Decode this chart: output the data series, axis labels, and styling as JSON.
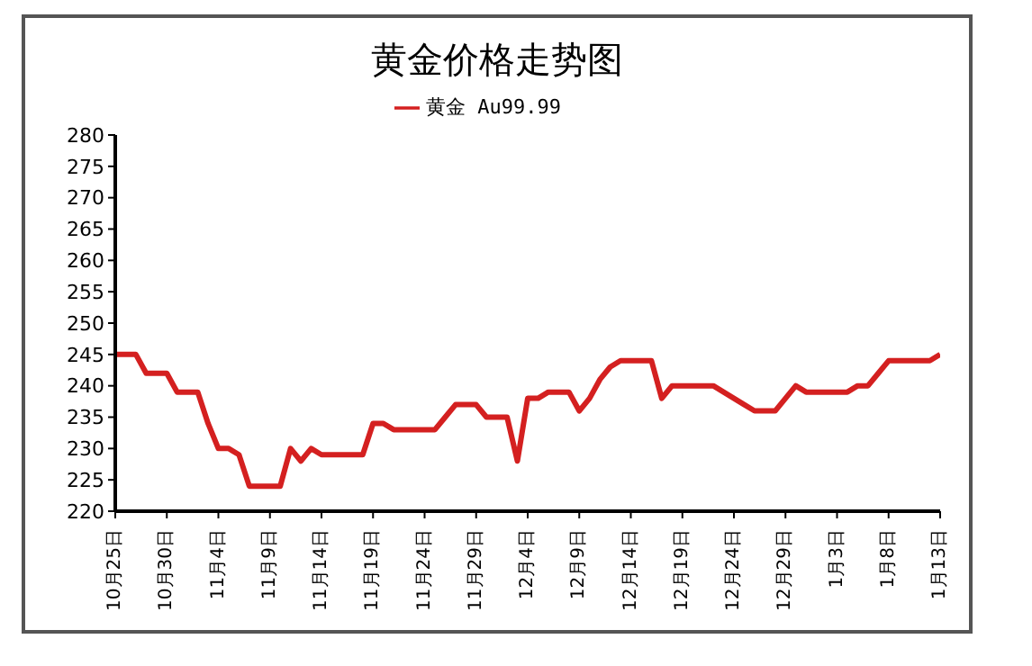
{
  "chart_data": {
    "type": "line",
    "title": "黄金价格走势图",
    "categories": [
      "10月25日",
      null,
      null,
      null,
      null,
      "10月30日",
      null,
      null,
      null,
      null,
      "11月4日",
      null,
      null,
      null,
      null,
      "11月9日",
      null,
      null,
      null,
      null,
      "11月14日",
      null,
      null,
      null,
      null,
      "11月19日",
      null,
      null,
      null,
      null,
      "11月24日",
      null,
      null,
      null,
      null,
      "11月29日",
      null,
      null,
      null,
      null,
      "12月4日",
      null,
      null,
      null,
      null,
      "12月9日",
      null,
      null,
      null,
      null,
      "12月14日",
      null,
      null,
      null,
      null,
      "12月19日",
      null,
      null,
      null,
      null,
      "12月24日",
      null,
      null,
      null,
      null,
      "12月29日",
      null,
      null,
      null,
      null,
      "1月3日",
      null,
      null,
      null,
      null,
      "1月8日",
      null,
      null,
      null,
      null,
      "1月13日"
    ],
    "series": [
      {
        "name": "黄金 Au99.99",
        "color": "#d42020",
        "values": [
          245,
          245,
          245,
          242,
          242,
          242,
          239,
          239,
          239,
          234,
          230,
          230,
          229,
          224,
          224,
          224,
          224,
          230,
          228,
          230,
          229,
          229,
          229,
          229,
          229,
          234,
          234,
          233,
          233,
          233,
          233,
          233,
          235,
          237,
          237,
          237,
          235,
          235,
          235,
          228,
          238,
          238,
          239,
          239,
          239,
          236,
          238,
          241,
          243,
          244,
          244,
          244,
          244,
          238,
          240,
          240,
          240,
          240,
          240,
          239,
          238,
          237,
          236,
          236,
          236,
          238,
          240,
          239,
          239,
          239,
          239,
          239,
          240,
          240,
          242,
          244,
          244,
          244,
          244,
          244,
          245
        ]
      }
    ],
    "ylim": [
      220,
      280
    ],
    "yticks": [
      220,
      225,
      230,
      235,
      240,
      245,
      250,
      255,
      260,
      265,
      270,
      275,
      280
    ],
    "grid": false,
    "legend": "top",
    "marker": "none",
    "line_style": "solid"
  }
}
